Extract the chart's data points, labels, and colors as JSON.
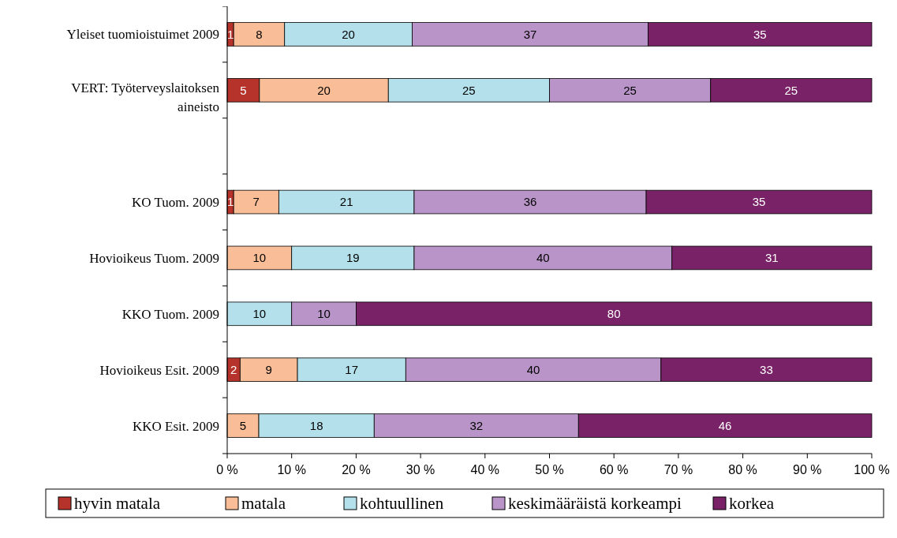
{
  "chart_data": {
    "type": "bar",
    "orientation": "horizontal",
    "stacked": true,
    "categories": [
      "Yleiset tuomioistuimet 2009",
      "VERT: Työterveyslaitoksen aineisto",
      null,
      "KO Tuom. 2009",
      "Hovioikeus Tuom. 2009",
      "KKO Tuom. 2009",
      "Hovioikeus Esit. 2009",
      "KKO Esit. 2009"
    ],
    "series": [
      {
        "name": "hyvin matala",
        "color": "#b5332a",
        "values": [
          1,
          5,
          null,
          1,
          null,
          null,
          2,
          null
        ],
        "value_labels": [
          "1",
          "5",
          null,
          "1",
          null,
          null,
          "2",
          null
        ]
      },
      {
        "name": "matala",
        "color": "#f9be97",
        "values": [
          7.9,
          20,
          null,
          7,
          10,
          null,
          8.9,
          4.9
        ],
        "value_labels": [
          "8",
          "20",
          null,
          "7",
          "10",
          null,
          "9",
          "5"
        ]
      },
      {
        "name": "kohtuullinen",
        "color": "#b3e0ea",
        "values": [
          19.8,
          25,
          null,
          21,
          19,
          10,
          16.8,
          17.9
        ],
        "value_labels": [
          "20",
          "25",
          null,
          "21",
          "19",
          "10",
          "17",
          "18"
        ]
      },
      {
        "name": "keskimääräistä korkeampi",
        "color": "#b994c8",
        "values": [
          36.6,
          25,
          null,
          36,
          40,
          10,
          39.6,
          31.7
        ],
        "value_labels": [
          "37",
          "25",
          null,
          "36",
          "40",
          "10",
          "40",
          "32"
        ]
      },
      {
        "name": "korkea",
        "color": "#7a2268",
        "values": [
          34.7,
          25,
          null,
          35,
          31,
          80,
          32.7,
          45.5
        ],
        "value_labels": [
          "35",
          "25",
          null,
          "35",
          "31",
          "80",
          "33",
          "46"
        ]
      }
    ],
    "xlim": [
      0,
      100
    ],
    "xticks": [
      {
        "value": 0,
        "label": "0 %"
      },
      {
        "value": 10,
        "label": "10 %"
      },
      {
        "value": 20,
        "label": "20 %"
      },
      {
        "value": 30,
        "label": "30 %"
      },
      {
        "value": 40,
        "label": "40 %"
      },
      {
        "value": 50,
        "label": "50 %"
      },
      {
        "value": 60,
        "label": "60 %"
      },
      {
        "value": 70,
        "label": "70 %"
      },
      {
        "value": 80,
        "label": "80 %"
      },
      {
        "value": 90,
        "label": "90 %"
      },
      {
        "value": 100,
        "label": "100 %"
      }
    ],
    "grid": false,
    "legend": "bottom"
  }
}
